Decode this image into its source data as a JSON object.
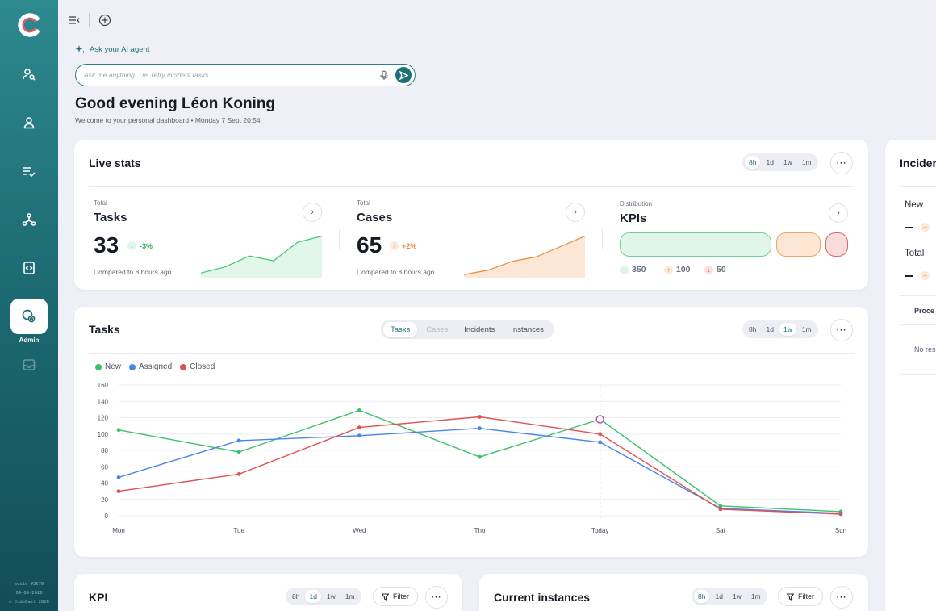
{
  "sidebar": {
    "items": [
      {
        "icon": "user-search-icon"
      },
      {
        "icon": "user-icon"
      },
      {
        "icon": "list-check-icon"
      },
      {
        "icon": "network-icon"
      },
      {
        "icon": "code-file-icon"
      },
      {
        "icon": "admin-settings-icon",
        "label": "Admin",
        "active": true
      },
      {
        "icon": "inbox-icon"
      }
    ],
    "footer": {
      "build": "build #2570",
      "date": "04-09-2026",
      "copyright": "© CodeCast 2026"
    }
  },
  "topbar": {
    "collapse_icon": "collapse-menu-icon",
    "add_icon": "add-circle-icon"
  },
  "ai": {
    "link_label": "Ask your AI agent",
    "placeholder": "Ask me anything... ie. retry incident tasks"
  },
  "greeting": {
    "title": "Good evening Léon Koning",
    "subtitle": "Welcome to your personal dashboard • Monday 7 Sept 20:54"
  },
  "live_stats": {
    "title": "Live stats",
    "ranges": [
      "8h",
      "1d",
      "1w",
      "1m"
    ],
    "active_range": "8h",
    "tasks": {
      "small": "Total",
      "name": "Tasks",
      "value": "33",
      "delta": "-3%",
      "compare": "Compared to 8 hours ago",
      "trend": [
        2,
        6,
        13,
        10,
        22,
        26
      ]
    },
    "cases": {
      "small": "Total",
      "name": "Cases",
      "value": "65",
      "delta": "+2%",
      "compare": "Compared to 8 hours ago",
      "trend": [
        1,
        4,
        10,
        13,
        20,
        27
      ]
    },
    "kpis": {
      "small": "Distribution",
      "name": "KPIs",
      "legend": [
        {
          "value": "350",
          "color": "#3cc06b"
        },
        {
          "value": "100",
          "color": "#f0a060"
        },
        {
          "value": "50",
          "color": "#e05a5a"
        }
      ]
    }
  },
  "tasks_card": {
    "title": "Tasks",
    "tabs": [
      "Tasks",
      "Cases",
      "Incidents",
      "Instances"
    ],
    "active_tab": "Tasks",
    "ranges": [
      "8h",
      "1d",
      "1w",
      "1m"
    ],
    "active_range": "1w",
    "legend": [
      {
        "name": "New",
        "color": "#3cc06b"
      },
      {
        "name": "Assigned",
        "color": "#4a86e8"
      },
      {
        "name": "Closed",
        "color": "#e05252"
      }
    ]
  },
  "chart_data": {
    "type": "line",
    "categories": [
      "Mon",
      "Tue",
      "Wed",
      "Thu",
      "Today",
      "Sat",
      "Sun"
    ],
    "y_ticks": [
      0,
      20,
      40,
      60,
      80,
      100,
      120,
      140,
      160
    ],
    "ylim": [
      0,
      160
    ],
    "grid": true,
    "legend_position": "top-left",
    "series": [
      {
        "name": "New",
        "color": "#3cc06b",
        "values": [
          105,
          78,
          129,
          72,
          118,
          12,
          5
        ]
      },
      {
        "name": "Assigned",
        "color": "#4a86e8",
        "values": [
          47,
          92,
          98,
          107,
          90,
          9,
          3
        ]
      },
      {
        "name": "Closed",
        "color": "#e05252",
        "values": [
          30,
          51,
          108,
          121,
          100,
          8,
          2
        ]
      }
    ],
    "highlight": {
      "category": "Today",
      "value": 118
    }
  },
  "kpi_card": {
    "title": "KPI",
    "ranges": [
      "8h",
      "1d",
      "1w",
      "1m"
    ],
    "active_range": "1d",
    "filter_label": "Filter"
  },
  "instances_card": {
    "title": "Current instances",
    "ranges": [
      "8h",
      "1d",
      "1w",
      "1m"
    ],
    "active_range": "8h",
    "filter_label": "Filter"
  },
  "incidents_card": {
    "title": "Inciden",
    "new_label": "New",
    "total_label": "Total",
    "column": "Proce",
    "empty": "No res"
  }
}
